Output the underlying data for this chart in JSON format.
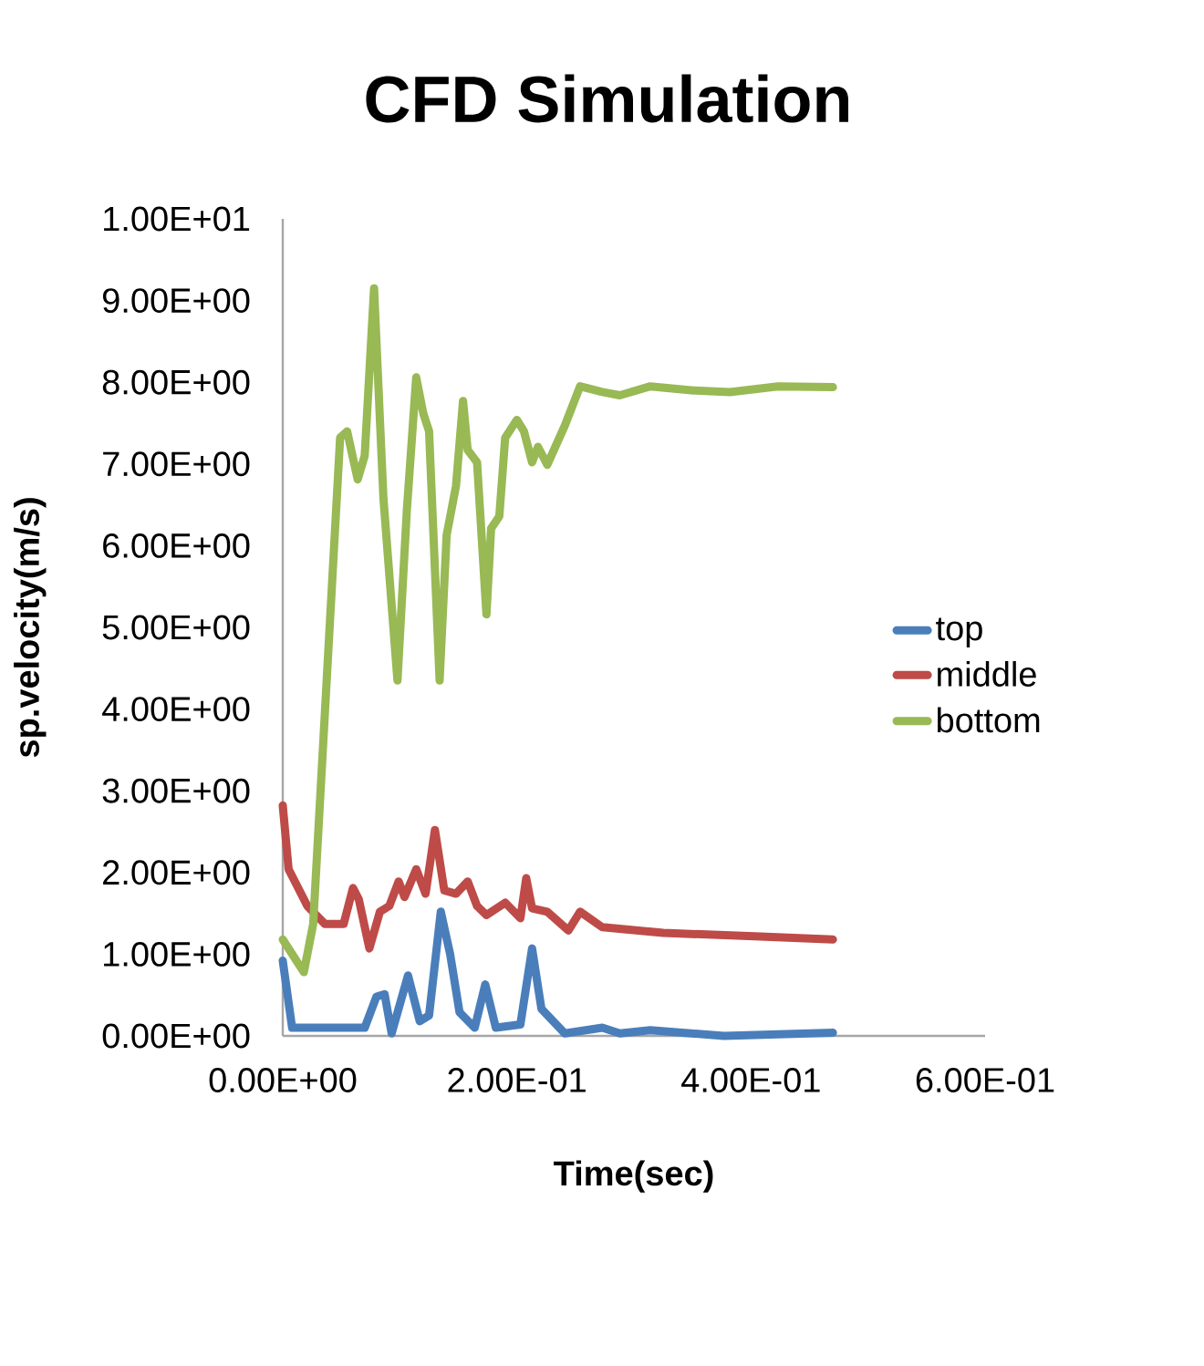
{
  "chart_data": {
    "type": "line",
    "title": "CFD Simulation",
    "xlabel": "Time(sec)",
    "ylabel": "sp.velocity(m/s)",
    "xlim": [
      0,
      0.6
    ],
    "ylim": [
      0,
      10
    ],
    "xticks": [
      {
        "value": 0,
        "label": "0.00E+00"
      },
      {
        "value": 0.2,
        "label": "2.00E-01"
      },
      {
        "value": 0.4,
        "label": "4.00E-01"
      },
      {
        "value": 0.6,
        "label": "6.00E-01"
      }
    ],
    "yticks": [
      {
        "value": 0,
        "label": "0.00E+00"
      },
      {
        "value": 1,
        "label": "1.00E+00"
      },
      {
        "value": 2,
        "label": "2.00E+00"
      },
      {
        "value": 3,
        "label": "3.00E+00"
      },
      {
        "value": 4,
        "label": "4.00E+00"
      },
      {
        "value": 5,
        "label": "5.00E+00"
      },
      {
        "value": 6,
        "label": "6.00E+00"
      },
      {
        "value": 7,
        "label": "7.00E+00"
      },
      {
        "value": 8,
        "label": "8.00E+00"
      },
      {
        "value": 9,
        "label": "9.00E+00"
      },
      {
        "value": 10,
        "label": "1.00E+01"
      }
    ],
    "grid": false,
    "legend": "right",
    "marker": "none",
    "line_style": "solid",
    "series": [
      {
        "name": "top",
        "color": "#4a7ebb",
        "x": [
          0,
          0.008,
          0.07,
          0.08,
          0.087,
          0.093,
          0.107,
          0.117,
          0.125,
          0.135,
          0.143,
          0.151,
          0.164,
          0.173,
          0.182,
          0.203,
          0.213,
          0.221,
          0.241,
          0.273,
          0.288,
          0.314,
          0.377,
          0.47
        ],
        "values": [
          0.92,
          0.1,
          0.1,
          0.48,
          0.51,
          0.03,
          0.74,
          0.18,
          0.25,
          1.52,
          1.0,
          0.29,
          0.1,
          0.63,
          0.1,
          0.14,
          1.07,
          0.33,
          0.03,
          0.1,
          0.03,
          0.07,
          0.0,
          0.04
        ]
      },
      {
        "name": "middle",
        "color": "#be4b48",
        "x": [
          0,
          0.005,
          0.021,
          0.036,
          0.052,
          0.06,
          0.065,
          0.074,
          0.083,
          0.091,
          0.099,
          0.104,
          0.114,
          0.122,
          0.13,
          0.138,
          0.148,
          0.158,
          0.166,
          0.174,
          0.19,
          0.203,
          0.208,
          0.213,
          0.226,
          0.244,
          0.254,
          0.273,
          0.304,
          0.325,
          0.403,
          0.47
        ],
        "values": [
          2.82,
          2.04,
          1.59,
          1.37,
          1.37,
          1.81,
          1.67,
          1.07,
          1.52,
          1.59,
          1.89,
          1.7,
          2.04,
          1.74,
          2.52,
          1.78,
          1.74,
          1.89,
          1.59,
          1.48,
          1.63,
          1.44,
          1.93,
          1.56,
          1.52,
          1.29,
          1.52,
          1.33,
          1.29,
          1.26,
          1.22,
          1.18
        ]
      },
      {
        "name": "bottom",
        "color": "#98b954",
        "x": [
          0,
          0.018,
          0.026,
          0.049,
          0.055,
          0.064,
          0.07,
          0.078,
          0.086,
          0.098,
          0.106,
          0.114,
          0.12,
          0.125,
          0.134,
          0.14,
          0.148,
          0.154,
          0.158,
          0.166,
          0.174,
          0.178,
          0.185,
          0.19,
          0.2,
          0.206,
          0.213,
          0.218,
          0.226,
          0.241,
          0.254,
          0.273,
          0.288,
          0.314,
          0.351,
          0.382,
          0.423,
          0.47
        ],
        "values": [
          1.18,
          0.78,
          1.37,
          7.32,
          7.4,
          6.81,
          7.1,
          9.15,
          6.58,
          4.35,
          6.43,
          8.06,
          7.62,
          7.4,
          4.35,
          6.13,
          6.73,
          7.77,
          7.17,
          7.02,
          5.16,
          6.21,
          6.36,
          7.32,
          7.54,
          7.4,
          7.02,
          7.21,
          6.99,
          7.47,
          7.95,
          7.88,
          7.84,
          7.95,
          7.9,
          7.88,
          7.95,
          7.94
        ]
      }
    ]
  }
}
